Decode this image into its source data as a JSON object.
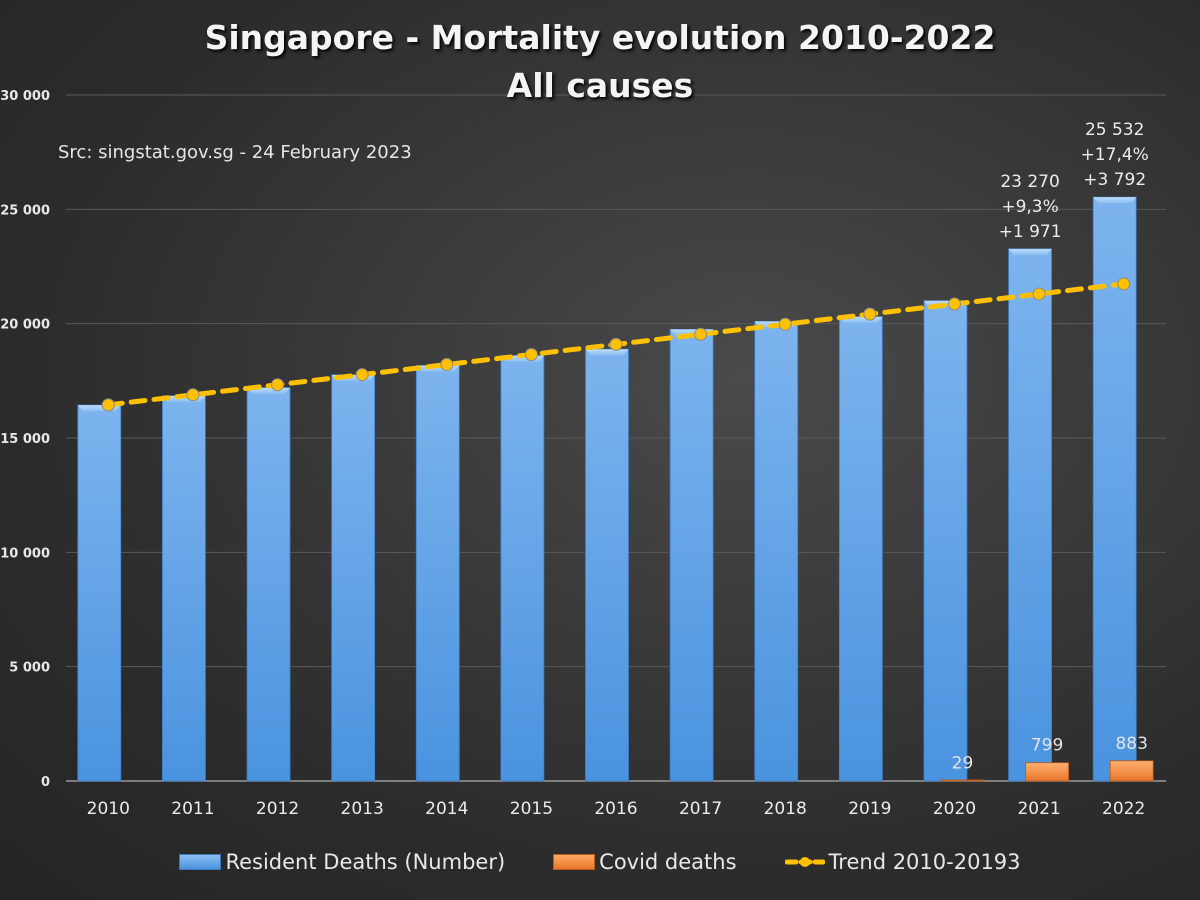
{
  "chart_data": {
    "type": "bar",
    "title": "Singapore - Mortality evolution 2010-2022",
    "subtitle": "All causes",
    "source_note": "Src: singstat.gov.sg - 24 February 2023",
    "xlabel": "",
    "ylabel": "",
    "ylim": [
      0,
      30000
    ],
    "yticks": [
      0,
      5000,
      10000,
      15000,
      20000,
      25000,
      30000
    ],
    "ytick_labels": [
      "0",
      "5 000",
      "10 000",
      "15 000",
      "20 000",
      "25 000",
      "30 000"
    ],
    "grid": true,
    "legend_position": "bottom",
    "categories": [
      "2010",
      "2011",
      "2012",
      "2013",
      "2014",
      "2015",
      "2016",
      "2017",
      "2018",
      "2019",
      "2020",
      "2021",
      "2022"
    ],
    "series": [
      {
        "name": "Resident Deaths (Number)",
        "type": "bar",
        "color": "#5b9bd5",
        "values": [
          16440,
          16840,
          17200,
          17760,
          18170,
          18600,
          18880,
          19750,
          20100,
          20300,
          21000,
          23270,
          25532
        ]
      },
      {
        "name": "Covid deaths",
        "type": "bar",
        "color": "#ed7d31",
        "values": [
          null,
          null,
          null,
          null,
          null,
          null,
          null,
          null,
          null,
          null,
          29,
          799,
          883
        ]
      },
      {
        "name": "Trend 2010-20193",
        "type": "line",
        "style": "dashed-with-markers",
        "color": "#ffc000",
        "values": [
          16448,
          16889,
          17330,
          17771,
          18212,
          18653,
          19094,
          19535,
          19976,
          20417,
          20858,
          21299,
          21740
        ]
      }
    ],
    "annotations": [
      {
        "category": "2021",
        "lines": [
          "23 270",
          "+9,3%",
          "+1 971"
        ]
      },
      {
        "category": "2022",
        "lines": [
          "25 532",
          "+17,4%",
          "+3 792"
        ]
      }
    ],
    "covid_labels": [
      {
        "category": "2020",
        "text": "29"
      },
      {
        "category": "2021",
        "text": "799"
      },
      {
        "category": "2022",
        "text": "883"
      }
    ]
  },
  "legend": {
    "items": [
      {
        "label": "Resident Deaths (Number)",
        "icon": "blue-bar-swatch"
      },
      {
        "label": "Covid deaths",
        "icon": "orange-bar-swatch"
      },
      {
        "label": "Trend 2010-20193",
        "icon": "dashed-line-marker-swatch"
      }
    ]
  }
}
